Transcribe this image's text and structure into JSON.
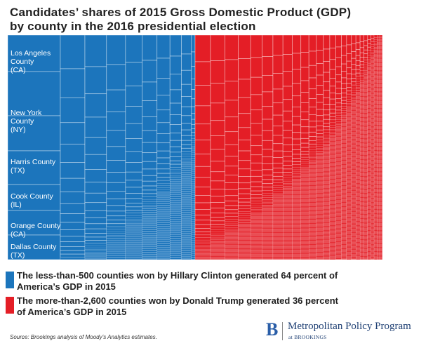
{
  "title_line1": "Candidates’ shares of 2015 Gross Domestic Product (GDP)",
  "title_line2": "by county in the 2016 presidential election",
  "chart_data": {
    "type": "treemap",
    "title": "Candidates’ shares of 2015 Gross Domestic Product (GDP) by county in the 2016 presidential election",
    "series": [
      {
        "name": "Hillary Clinton",
        "share_percent": 64,
        "color": "#1c75bc",
        "counties": "less-than-500"
      },
      {
        "name": "Donald Trump",
        "share_percent": 36,
        "color": "#e41e26",
        "counties": "more-than-2,600"
      }
    ],
    "labeled_counties": [
      {
        "name": "Los Angeles County (CA)",
        "lines": [
          "Los Angeles",
          "County",
          "(CA)"
        ]
      },
      {
        "name": "New York County (NY)",
        "lines": [
          "New York",
          "County",
          "(NY)"
        ]
      },
      {
        "name": "Harris County (TX)",
        "lines": [
          "Harris County",
          "(TX)"
        ]
      },
      {
        "name": "Cook County (IL)",
        "lines": [
          "Cook County",
          "(IL)"
        ]
      },
      {
        "name": "Orange County (CA)",
        "lines": [
          "Orange County",
          "(CA)"
        ]
      },
      {
        "name": "Dallas County (TX)",
        "lines": [
          "Dallas County",
          "(TX)"
        ]
      }
    ]
  },
  "legend": [
    {
      "line1": "The less-than-500 counties won by Hillary Clinton generated 64 percent of",
      "line2": "America’s GDP in 2015",
      "color": "#1c75bc"
    },
    {
      "line1": "The more-than-2,600 counties won by Donald Trump generated 36 percent",
      "line2": "of America’s GDP in 2015",
      "color": "#e41e26"
    }
  ],
  "source": "Source: Brookings analysis of Moody’s Analytics estimates.",
  "logo": {
    "mark": "B",
    "name": "Metropolitan Policy Program",
    "sub": "at BROOKINGS"
  }
}
